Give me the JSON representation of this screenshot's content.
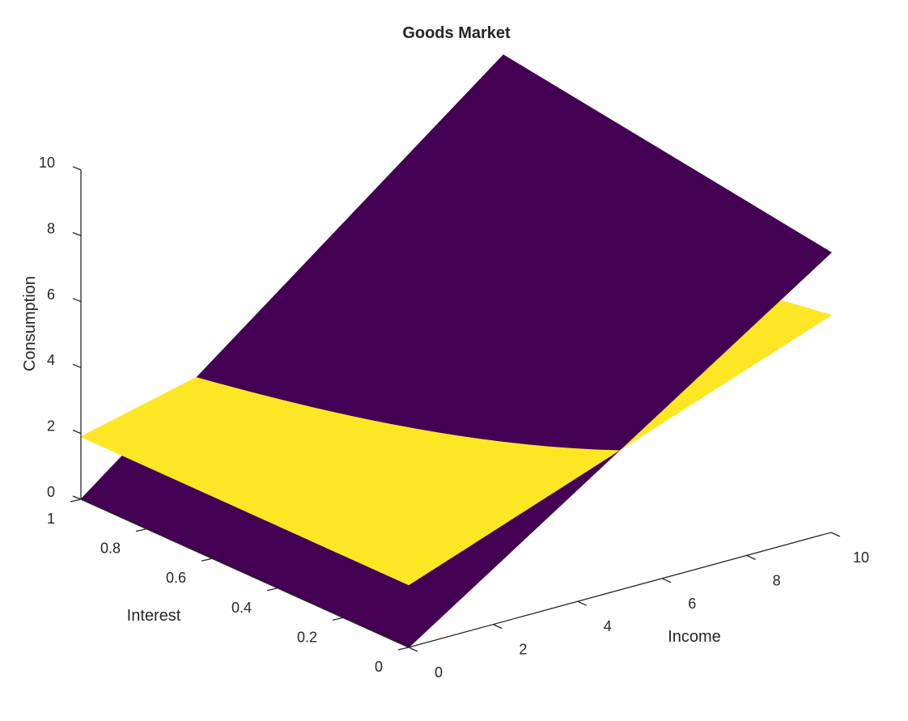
{
  "chart_data": {
    "type": "surface",
    "title": "Goods Market",
    "xlabel": "Income",
    "ylabel": "Interest",
    "zlabel": "Consumption",
    "xlim": [
      0,
      10
    ],
    "ylim": [
      0,
      1
    ],
    "zlim": [
      0,
      10
    ],
    "x_ticks": [
      "0",
      "2",
      "4",
      "6",
      "8",
      "10"
    ],
    "y_ticks": [
      "0",
      "0.2",
      "0.4",
      "0.6",
      "0.8",
      "1"
    ],
    "z_ticks": [
      "0",
      "2",
      "4",
      "6",
      "8",
      "10"
    ],
    "grid": false,
    "surfaces": [
      {
        "color": "#440154",
        "corners": [
          {
            "x": 0,
            "y": 0,
            "z": 0
          },
          {
            "x": 10,
            "y": 0,
            "z": 8.5
          },
          {
            "x": 10,
            "y": 1,
            "z": 10
          },
          {
            "x": 0,
            "y": 1,
            "z": 0
          }
        ]
      },
      {
        "color": "#fde725",
        "corners": [
          {
            "x": 0,
            "y": 0,
            "z": 1.9
          },
          {
            "x": 10,
            "y": 0,
            "z": 6.6
          },
          {
            "x": 10,
            "y": 1,
            "z": 5
          },
          {
            "x": 0,
            "y": 1,
            "z": 1.9
          }
        ]
      }
    ]
  }
}
